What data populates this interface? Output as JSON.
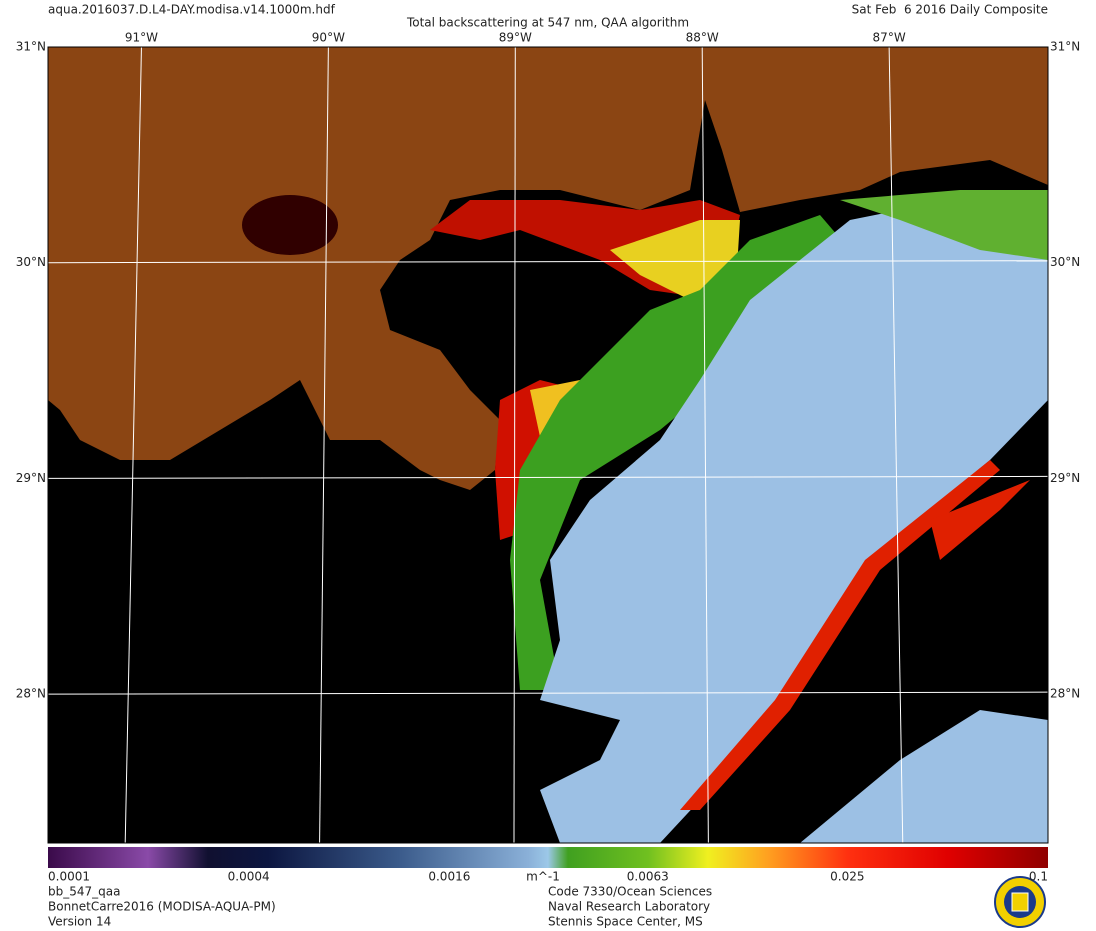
{
  "header": {
    "filename": "aqua.2016037.D.L4-DAY.modisa.v14.1000m.hdf",
    "title": "Total backscattering at 547 nm, QAA algorithm",
    "date": "Sat Feb  6 2016 Daily Composite"
  },
  "map": {
    "lonlim": [
      -91.5,
      -86.15
    ],
    "latlim": [
      27.31,
      31
    ],
    "lon_ticks": [
      {
        "value": -91,
        "label": "91°W"
      },
      {
        "value": -90,
        "label": "90°W"
      },
      {
        "value": -89,
        "label": "89°W"
      },
      {
        "value": -88,
        "label": "88°W"
      },
      {
        "value": -87,
        "label": "87°W"
      }
    ],
    "lat_ticks": [
      {
        "value": 31,
        "label": "31°N"
      },
      {
        "value": 30,
        "label": "30°N"
      },
      {
        "value": 29,
        "label": "29°N"
      },
      {
        "value": 28,
        "label": "28°N"
      }
    ]
  },
  "colorbar": {
    "log": true,
    "lim": [
      0.0001,
      0.1
    ],
    "ticks": [
      0.0001,
      0.0004,
      0.0016,
      0.0063,
      0.025,
      0.1
    ],
    "unit": "m^-1"
  },
  "footer": {
    "left": [
      "bb_547_qaa",
      "BonnetCarre2016 (MODISA-AQUA-PM)",
      "Version 14"
    ],
    "right": [
      "Code 7330/Ocean Sciences",
      "Naval Research Laboratory",
      "Stennis Space Center, MS"
    ]
  }
}
